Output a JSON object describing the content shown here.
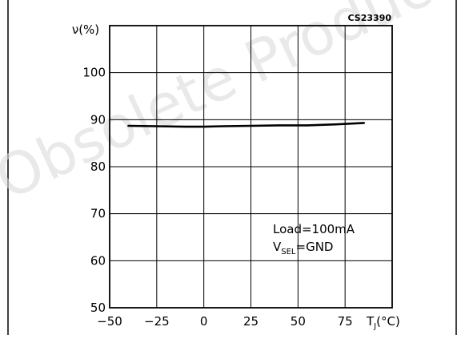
{
  "figure_code": "CS23390",
  "watermark": "Obsolete Product",
  "chart_data": {
    "type": "line",
    "ylabel": "ν(%)",
    "xlabel_main": "T",
    "xlabel_sub": "J",
    "xlabel_unit": "(°C)",
    "xlim": [
      -50,
      100
    ],
    "ylim": [
      50,
      110
    ],
    "x_ticks": [
      -50,
      -25,
      0,
      25,
      50,
      75
    ],
    "x_tick_labels": [
      "−50",
      "−25",
      "0",
      "25",
      "50",
      "75"
    ],
    "y_ticks": [
      50,
      60,
      70,
      80,
      90,
      100
    ],
    "y_tick_labels": [
      "50",
      "60",
      "70",
      "80",
      "90",
      "100"
    ],
    "grid": true,
    "series": [
      {
        "x": [
          -40,
          -25,
          -10,
          0,
          10,
          25,
          40,
          55,
          70,
          85
        ],
        "y": [
          88.7,
          88.6,
          88.5,
          88.5,
          88.6,
          88.7,
          88.8,
          88.8,
          89.0,
          89.3
        ]
      }
    ],
    "annotation": {
      "line1": "Load=100mA",
      "line2_main": "V",
      "line2_sub": "SEL",
      "line2_rest": "=GND"
    }
  }
}
